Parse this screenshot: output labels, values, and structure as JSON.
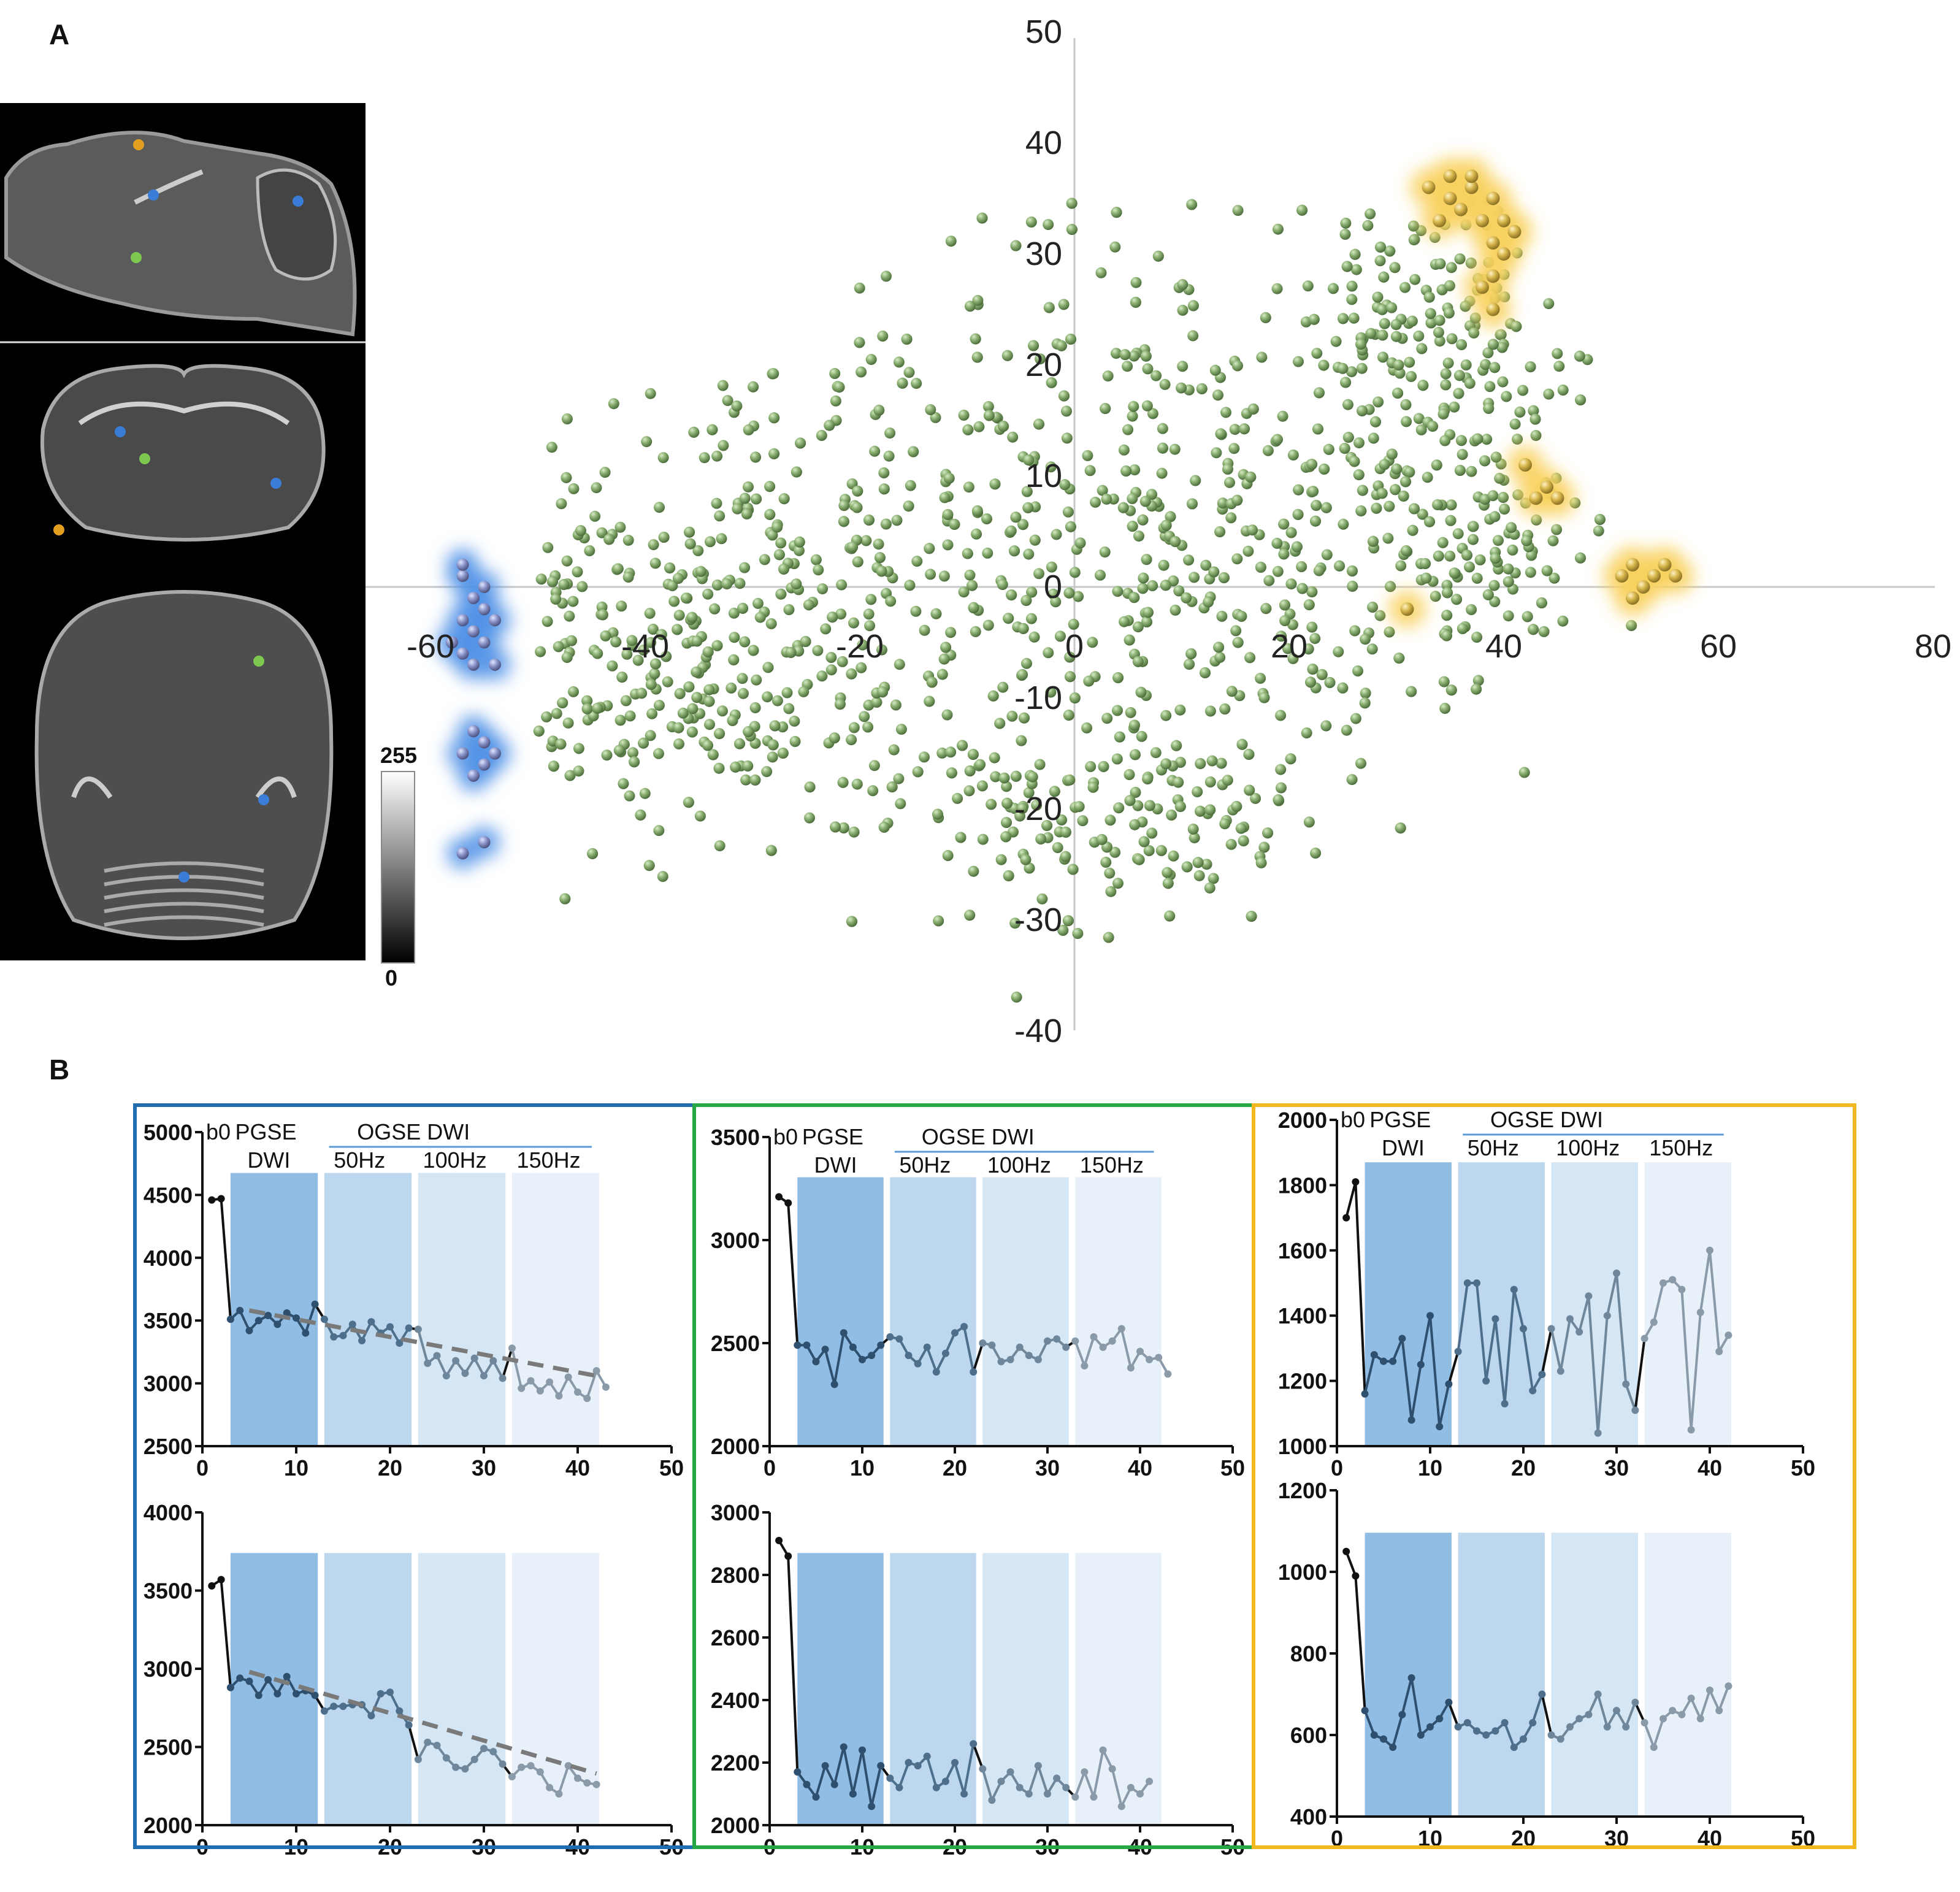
{
  "panel_labels": {
    "a": "A",
    "b": "B"
  },
  "colorbar": {
    "max_label": "255",
    "min_label": "0"
  },
  "colors": {
    "blue_group": "#3a7dd8",
    "green_group": "#7fa866",
    "yellow_group": "#f5c842",
    "frame_blue": "#1f6db0",
    "frame_green": "#27a745",
    "frame_yellow": "#f3b81f"
  },
  "mri_views": [
    "sagittal",
    "coronal",
    "axial"
  ],
  "chart_data": [
    {
      "type": "scatter",
      "title": "",
      "xlabel": "",
      "ylabel": "",
      "xlim": [
        -60,
        80
      ],
      "ylim": [
        -40,
        50
      ],
      "x_ticks": [
        "-60",
        "-40",
        "-20",
        "0",
        "20",
        "40",
        "60",
        "80"
      ],
      "y_ticks": [
        "50",
        "40",
        "30",
        "20",
        "10",
        "0",
        "-10",
        "-20",
        "-30",
        "-40"
      ],
      "series": [
        {
          "name": "green cluster",
          "color": "#7fa866",
          "count": 1700
        },
        {
          "name": "blue cluster",
          "color": "#3a7dd8",
          "points": [
            [
              -57,
              1
            ],
            [
              -56,
              -1
            ],
            [
              -55,
              -2
            ],
            [
              -57,
              -3
            ],
            [
              -56,
              -4
            ],
            [
              -55,
              -5
            ],
            [
              -57,
              -6
            ],
            [
              -56,
              -7
            ],
            [
              -54,
              -7
            ],
            [
              -58,
              -5
            ],
            [
              -55,
              0
            ],
            [
              -57,
              2
            ],
            [
              -54,
              -3
            ],
            [
              -56,
              -13
            ],
            [
              -55,
              -14
            ],
            [
              -57,
              -15
            ],
            [
              -55,
              -16
            ],
            [
              -56,
              -17
            ],
            [
              -54,
              -15
            ],
            [
              -57,
              -24
            ],
            [
              -55,
              -23
            ]
          ]
        },
        {
          "name": "yellow cluster",
          "color": "#f5c842",
          "points": [
            [
              33,
              36
            ],
            [
              35,
              37
            ],
            [
              37,
              36
            ],
            [
              39,
              35
            ],
            [
              36,
              34
            ],
            [
              38,
              33
            ],
            [
              40,
              33
            ],
            [
              41,
              32
            ],
            [
              39,
              31
            ],
            [
              40,
              30
            ],
            [
              39,
              28
            ],
            [
              38,
              27
            ],
            [
              39,
              25
            ],
            [
              37,
              37
            ],
            [
              35,
              35
            ],
            [
              34,
              33
            ],
            [
              42,
              11
            ],
            [
              44,
              9
            ],
            [
              45,
              8
            ],
            [
              43,
              8
            ],
            [
              51,
              1
            ],
            [
              52,
              2
            ],
            [
              54,
              1
            ],
            [
              55,
              2
            ],
            [
              56,
              1
            ],
            [
              53,
              0
            ],
            [
              52,
              -1
            ],
            [
              31,
              -2
            ]
          ]
        }
      ]
    },
    {
      "type": "line",
      "panel": "blue-top",
      "header": {
        "b0": "b0",
        "pgse": "PGSE",
        "dwi": "DWI",
        "ogse": "OGSE DWI",
        "f50": "50Hz",
        "f100": "100Hz",
        "f150": "150Hz"
      },
      "xlim": [
        0,
        50
      ],
      "ylim": [
        2500,
        5000
      ],
      "x_ticks": [
        "0",
        "10",
        "20",
        "30",
        "40",
        "50"
      ],
      "y_ticks": [
        "5000",
        "4500",
        "4000",
        "3500",
        "3000",
        "2500"
      ],
      "values": [
        4460,
        4470,
        3510,
        3580,
        3420,
        3500,
        3540,
        3470,
        3560,
        3520,
        3400,
        3630,
        3510,
        3370,
        3380,
        3470,
        3340,
        3490,
        3400,
        3450,
        3320,
        3440,
        3430,
        3160,
        3220,
        3060,
        3180,
        3080,
        3200,
        3060,
        3180,
        3040,
        3280,
        2960,
        3020,
        2940,
        3010,
        2900,
        3050,
        2930,
        2880,
        3100,
        2970
      ],
      "trend": [
        [
          5,
          3580
        ],
        [
          42,
          3060
        ]
      ]
    },
    {
      "type": "line",
      "panel": "blue-bottom",
      "xlim": [
        0,
        50
      ],
      "ylim": [
        2000,
        4000
      ],
      "x_ticks": [
        "0",
        "10",
        "20",
        "30",
        "40",
        "50"
      ],
      "y_ticks": [
        "4000",
        "3500",
        "3000",
        "2500",
        "2000"
      ],
      "values": [
        3530,
        3570,
        2880,
        2940,
        2920,
        2830,
        2930,
        2840,
        2950,
        2840,
        2860,
        2830,
        2730,
        2760,
        2760,
        2770,
        2770,
        2700,
        2840,
        2850,
        2730,
        2640,
        2420,
        2530,
        2510,
        2430,
        2370,
        2360,
        2420,
        2490,
        2470,
        2390,
        2310,
        2370,
        2380,
        2340,
        2240,
        2200,
        2380,
        2300,
        2270,
        2260
      ],
      "trend": [
        [
          5,
          2980
        ],
        [
          42,
          2330
        ]
      ]
    },
    {
      "type": "line",
      "panel": "green-top",
      "header": {
        "b0": "b0",
        "pgse": "PGSE",
        "dwi": "DWI",
        "ogse": "OGSE DWI",
        "f50": "50Hz",
        "f100": "100Hz",
        "f150": "150Hz"
      },
      "xlim": [
        0,
        50
      ],
      "ylim": [
        2000,
        3500
      ],
      "x_ticks": [
        "0",
        "10",
        "20",
        "30",
        "40",
        "50"
      ],
      "y_ticks": [
        "3500",
        "3000",
        "2500",
        "2000"
      ],
      "values": [
        3210,
        3180,
        2490,
        2490,
        2410,
        2470,
        2300,
        2550,
        2480,
        2420,
        2440,
        2490,
        2530,
        2520,
        2440,
        2400,
        2480,
        2360,
        2450,
        2550,
        2580,
        2360,
        2500,
        2490,
        2410,
        2420,
        2480,
        2440,
        2420,
        2510,
        2520,
        2480,
        2510,
        2390,
        2530,
        2480,
        2510,
        2570,
        2380,
        2460,
        2420,
        2430,
        2350
      ]
    },
    {
      "type": "line",
      "panel": "green-bottom",
      "xlim": [
        0,
        50
      ],
      "ylim": [
        2000,
        3000
      ],
      "x_ticks": [
        "0",
        "10",
        "20",
        "30",
        "40",
        "50"
      ],
      "y_ticks": [
        "3000",
        "2800",
        "2600",
        "2400",
        "2200",
        "2000"
      ],
      "values": [
        2910,
        2860,
        2170,
        2130,
        2090,
        2190,
        2130,
        2250,
        2100,
        2240,
        2060,
        2190,
        2150,
        2120,
        2200,
        2190,
        2220,
        2120,
        2140,
        2200,
        2100,
        2260,
        2180,
        2080,
        2140,
        2170,
        2120,
        2100,
        2190,
        2100,
        2150,
        2120,
        2090,
        2170,
        2090,
        2240,
        2180,
        2060,
        2120,
        2100,
        2140
      ]
    },
    {
      "type": "line",
      "panel": "yellow-top",
      "header": {
        "b0": "b0",
        "pgse": "PGSE",
        "dwi": "DWI",
        "ogse": "OGSE DWI",
        "f50": "50Hz",
        "f100": "100Hz",
        "f150": "150Hz"
      },
      "xlim": [
        0,
        50
      ],
      "ylim": [
        1000,
        2000
      ],
      "x_ticks": [
        "0",
        "10",
        "20",
        "30",
        "40",
        "50"
      ],
      "y_ticks": [
        "2000",
        "1800",
        "1600",
        "1400",
        "1200",
        "1000"
      ],
      "values": [
        1700,
        1810,
        1160,
        1280,
        1260,
        1260,
        1330,
        1080,
        1250,
        1400,
        1060,
        1190,
        1290,
        1500,
        1500,
        1200,
        1390,
        1130,
        1480,
        1360,
        1170,
        1220,
        1360,
        1230,
        1390,
        1350,
        1460,
        1040,
        1400,
        1530,
        1190,
        1110,
        1330,
        1380,
        1500,
        1510,
        1480,
        1050,
        1410,
        1600,
        1290,
        1340
      ]
    },
    {
      "type": "line",
      "panel": "yellow-bottom",
      "xlim": [
        0,
        50
      ],
      "ylim": [
        400,
        1200
      ],
      "x_ticks": [
        "0",
        "10",
        "20",
        "30",
        "40",
        "50"
      ],
      "y_ticks": [
        "1200",
        "1000",
        "800",
        "600",
        "400"
      ],
      "values": [
        1050,
        990,
        660,
        600,
        590,
        570,
        650,
        740,
        600,
        620,
        640,
        680,
        620,
        630,
        610,
        600,
        610,
        630,
        570,
        590,
        630,
        700,
        600,
        590,
        620,
        640,
        650,
        700,
        620,
        660,
        620,
        680,
        630,
        570,
        640,
        660,
        650,
        690,
        640,
        710,
        660,
        720
      ]
    }
  ]
}
